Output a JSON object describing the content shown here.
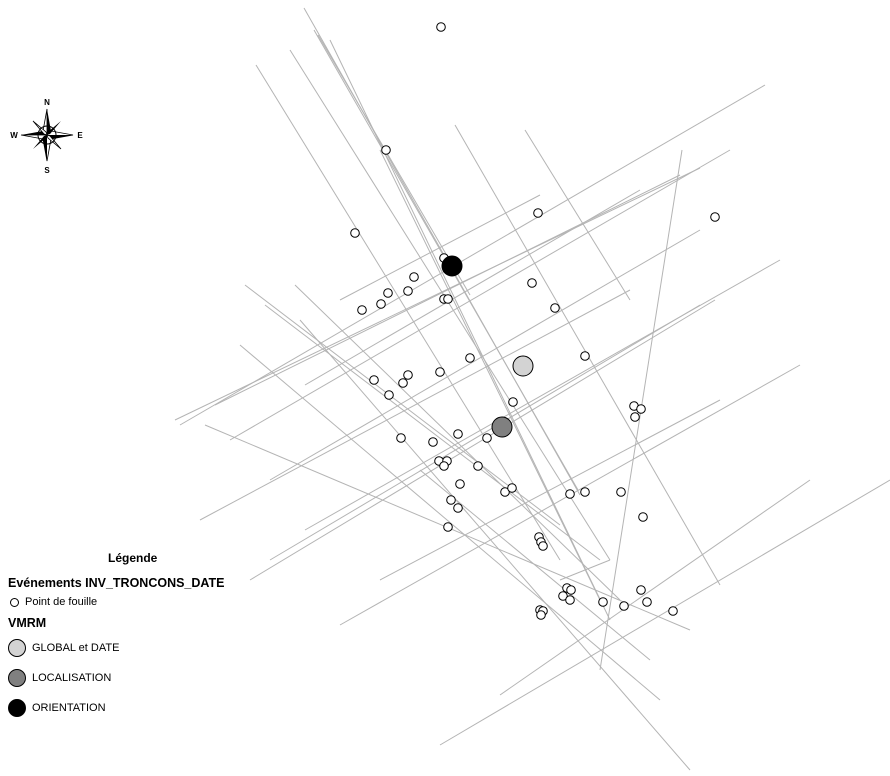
{
  "compass": {
    "north": "N",
    "south": "S",
    "east": "E",
    "west": "W"
  },
  "legend": {
    "title": "Légende",
    "layer1_title": "Evénements INV_TRONCONS_DATE",
    "layer1_items": [
      {
        "label": "Point de fouille",
        "fill": "#ffffff"
      }
    ],
    "layer2_title": "VMRM",
    "layer2_items": [
      {
        "label": "GLOBAL et DATE",
        "fill": "#d3d3d3"
      },
      {
        "label": "LOCALISATION",
        "fill": "#808080"
      },
      {
        "label": "ORIENTATION",
        "fill": "#000000"
      }
    ]
  },
  "colors": {
    "line": "#b4b4b4",
    "point_stroke": "#000000",
    "global": "#d3d3d3",
    "localisation": "#808080",
    "orientation": "#000000"
  }
}
